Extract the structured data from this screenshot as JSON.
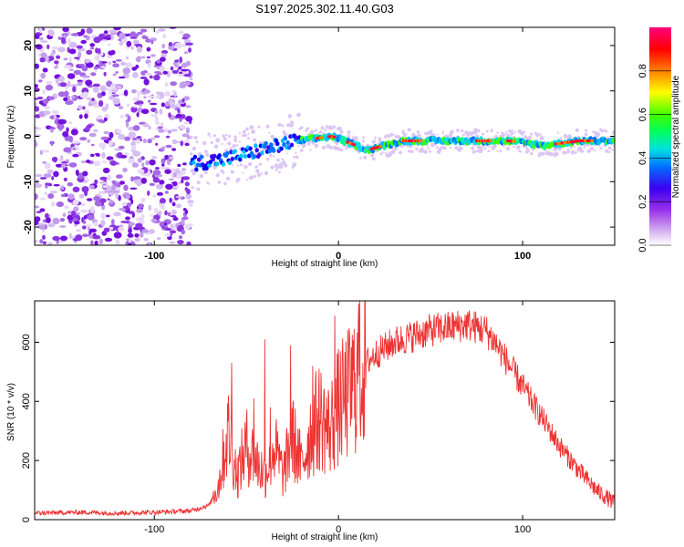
{
  "title": "S197.2025.302.11.40.G03",
  "chart_data": [
    {
      "type": "heatmap",
      "title": "S197.2025.302.11.40.G03",
      "xlabel": "Height of straight line (km)",
      "ylabel": "Frequency (Hz)",
      "xlim": [
        -165,
        150
      ],
      "ylim": [
        -24,
        24
      ],
      "xticks": [
        -100,
        0,
        100
      ],
      "yticks": [
        -20,
        -10,
        0,
        10,
        20
      ],
      "colorbar": {
        "label": "Normalized spectral amplitude",
        "range": [
          0,
          1
        ],
        "ticks": [
          "0.0",
          "0.2",
          "0.4",
          "0.6",
          "0.8"
        ],
        "colors": [
          "#ffffff",
          "#d9b8f0",
          "#7a00e0",
          "#0000ff",
          "#00bfff",
          "#00ffa0",
          "#00ff00",
          "#ffff00",
          "#ff8000",
          "#ff0000",
          "#ff0080"
        ]
      },
      "regions": [
        {
          "name": "scattered-noise",
          "x": [
            -165,
            -80
          ],
          "freq": [
            -24,
            24
          ]
        },
        {
          "name": "trace",
          "x": [
            -80,
            150
          ],
          "freq_center": [
            -6,
            -5,
            -3,
            -1,
            0,
            -3,
            -1,
            -1,
            -1,
            -1,
            -2,
            -1,
            -1
          ]
        }
      ]
    },
    {
      "type": "line",
      "xlabel": "Height of straight line (km)",
      "ylabel": "SNR (10 * v/v)",
      "xlim": [
        -165,
        150
      ],
      "ylim": [
        0,
        740
      ],
      "xticks": [
        -100,
        0,
        100
      ],
      "yticks": [
        0,
        200,
        400,
        600
      ],
      "series": [
        {
          "name": "SNR",
          "color": "#ee3333",
          "x": [
            -165,
            -140,
            -120,
            -100,
            -80,
            -70,
            -65,
            -60,
            -55,
            -50,
            -45,
            -40,
            -35,
            -30,
            -25,
            -20,
            -15,
            -10,
            -5,
            0,
            5,
            10,
            15,
            20,
            30,
            40,
            50,
            60,
            70,
            80,
            85,
            90,
            100,
            110,
            120,
            130,
            140,
            150
          ],
          "values": [
            22,
            25,
            22,
            25,
            30,
            50,
            120,
            300,
            150,
            250,
            200,
            150,
            250,
            150,
            280,
            180,
            300,
            350,
            300,
            380,
            420,
            480,
            530,
            560,
            600,
            620,
            640,
            650,
            660,
            640,
            600,
            550,
            450,
            350,
            250,
            170,
            100,
            55
          ]
        }
      ]
    }
  ]
}
